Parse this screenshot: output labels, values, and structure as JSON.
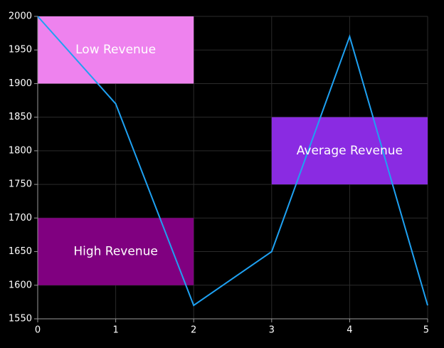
{
  "chart_data": {
    "type": "line",
    "title": "",
    "xlabel": "",
    "ylabel": "",
    "x": [
      0,
      1,
      2,
      3,
      4,
      5
    ],
    "series": [
      {
        "values": [
          2000,
          1870,
          1570,
          1650,
          1970,
          1570
        ],
        "color": "#1ea1f2"
      }
    ],
    "xlim": [
      0,
      5
    ],
    "ylim": [
      1550,
      2000
    ],
    "x_ticks": [
      0,
      1,
      2,
      3,
      4,
      5
    ],
    "y_ticks": [
      1550,
      1600,
      1650,
      1700,
      1750,
      1800,
      1850,
      1900,
      1950,
      2000
    ],
    "grid": true,
    "background": "#000000",
    "bands": [
      {
        "label": "Low Revenue",
        "x_start": 0,
        "x_end": 2,
        "y_start": 1900,
        "y_end": 2000,
        "color": "#ee82ee"
      },
      {
        "label": "Average Revenue",
        "x_start": 3,
        "x_end": 5,
        "y_start": 1750,
        "y_end": 1850,
        "color": "#8a2be2"
      },
      {
        "label": "High Revenue",
        "x_start": 0,
        "x_end": 2,
        "y_start": 1600,
        "y_end": 1700,
        "color": "#800080"
      }
    ]
  }
}
